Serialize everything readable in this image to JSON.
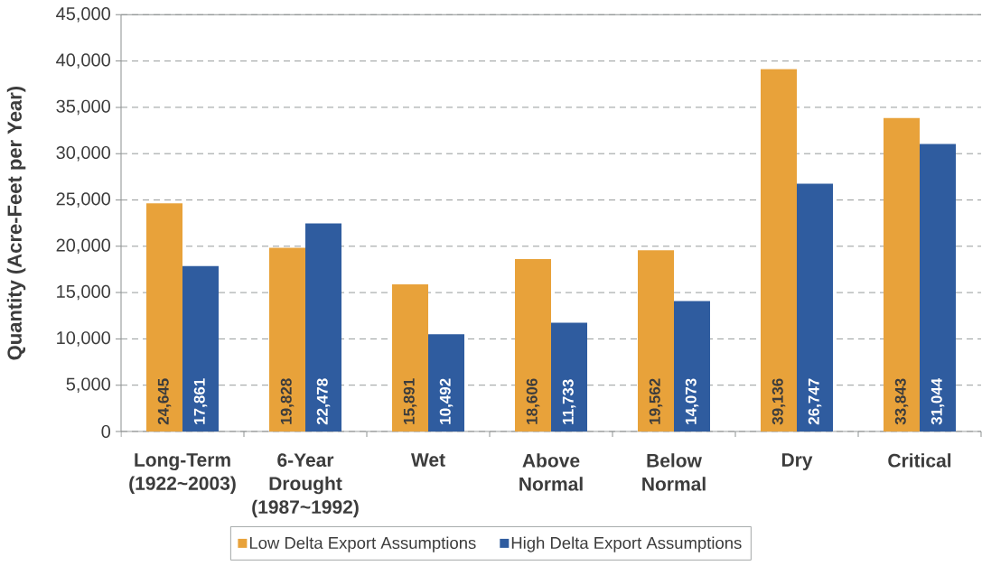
{
  "chart_data": {
    "type": "bar",
    "ylabel": "Quantity (Acre-Feet per Year)",
    "categories": [
      "Long-Term (1922~2003)",
      "6-Year Drought (1987~1992)",
      "Wet",
      "Above Normal",
      "Below Normal",
      "Dry",
      "Critical"
    ],
    "series": [
      {
        "name": "Low Delta Export Assumptions",
        "color": "#e8a23a",
        "values": [
          24645,
          19828,
          15891,
          18606,
          19562,
          39136,
          33843
        ],
        "value_labels": [
          "24,645",
          "19,828",
          "15,891",
          "18,606",
          "19,562",
          "39,136",
          "33,843"
        ]
      },
      {
        "name": "High Delta Export Assumptions",
        "color": "#2f5c9f",
        "values": [
          17861,
          22478,
          10492,
          11733,
          14073,
          26747,
          31044
        ],
        "value_labels": [
          "17,861",
          "22,478",
          "10,492",
          "11,733",
          "14,073",
          "26,747",
          "31,044"
        ]
      }
    ],
    "ylim": [
      0,
      45000
    ],
    "yticks": [
      0,
      {
        "value": 5000,
        "label": "5,000"
      },
      {
        "value": 10000,
        "label": "10,000"
      },
      {
        "value": 15000,
        "label": "15,000"
      },
      {
        "value": 20000,
        "label": "20,000"
      },
      {
        "value": 25000,
        "label": "25,000"
      },
      {
        "value": 30000,
        "label": "30,000"
      },
      {
        "value": 35000,
        "label": "35,000"
      },
      {
        "value": 40000,
        "label": "40,000"
      },
      {
        "value": 45000,
        "label": "45,000"
      }
    ],
    "grid": "y",
    "legend": "bottom"
  }
}
